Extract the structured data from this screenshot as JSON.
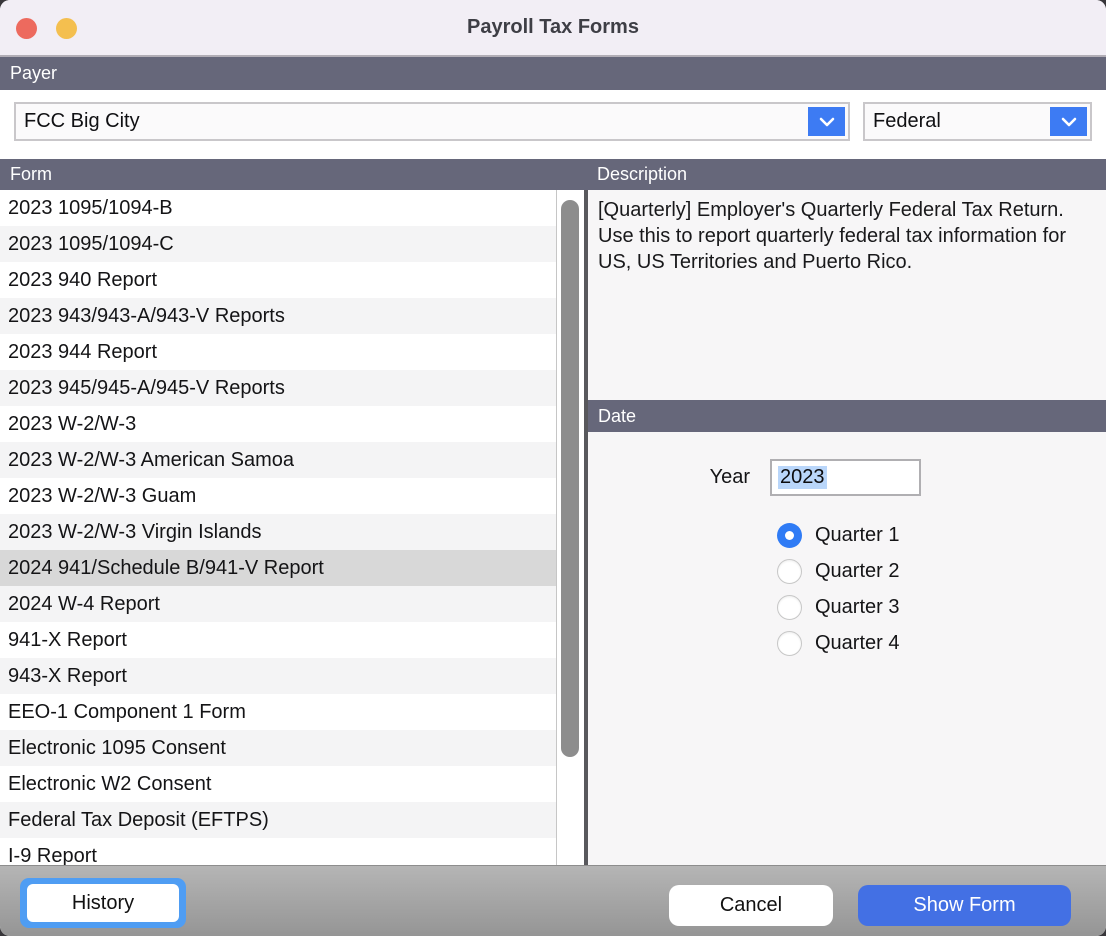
{
  "window": {
    "title": "Payroll Tax Forms"
  },
  "payer": {
    "section_label": "Payer",
    "company_value": "FCC Big City",
    "jurisdiction_value": "Federal"
  },
  "form_list": {
    "header": "Form",
    "selected_index": 10,
    "items": [
      "2023 1095/1094-B",
      "2023 1095/1094-C",
      "2023 940 Report",
      "2023 943/943-A/943-V Reports",
      "2023 944 Report",
      "2023 945/945-A/945-V Reports",
      "2023 W-2/W-3",
      "2023 W-2/W-3 American Samoa",
      "2023 W-2/W-3 Guam",
      "2023 W-2/W-3 Virgin Islands",
      "2024 941/Schedule B/941-V Report",
      "2024 W-4 Report",
      "941-X Report",
      "943-X Report",
      "EEO-1 Component 1 Form",
      "Electronic 1095 Consent",
      "Electronic W2 Consent",
      "Federal Tax Deposit (EFTPS)",
      "I-9 Report"
    ]
  },
  "description": {
    "header": "Description",
    "text": "[Quarterly] Employer's Quarterly Federal Tax Return.  Use this to report quarterly federal tax information for US, US Territories and Puerto Rico."
  },
  "date": {
    "header": "Date",
    "year_label": "Year",
    "year_value": "2023",
    "quarters": [
      "Quarter 1",
      "Quarter 2",
      "Quarter 3",
      "Quarter 4"
    ],
    "selected_quarter": "Quarter 1"
  },
  "footer": {
    "history_label": "History",
    "cancel_label": "Cancel",
    "show_form_label": "Show Form"
  },
  "colors": {
    "section_bar": "#66677a",
    "accent_blue": "#3d7bf3",
    "show_form_blue": "#4370e4",
    "focus_ring_blue": "#4f9df3",
    "radio_blue": "#2f7bf5",
    "selected_row": "#d8d8d8",
    "text_selection": "#b9d6fa",
    "traffic_red": "#ed6a5e",
    "traffic_yellow": "#f4bf4f"
  }
}
